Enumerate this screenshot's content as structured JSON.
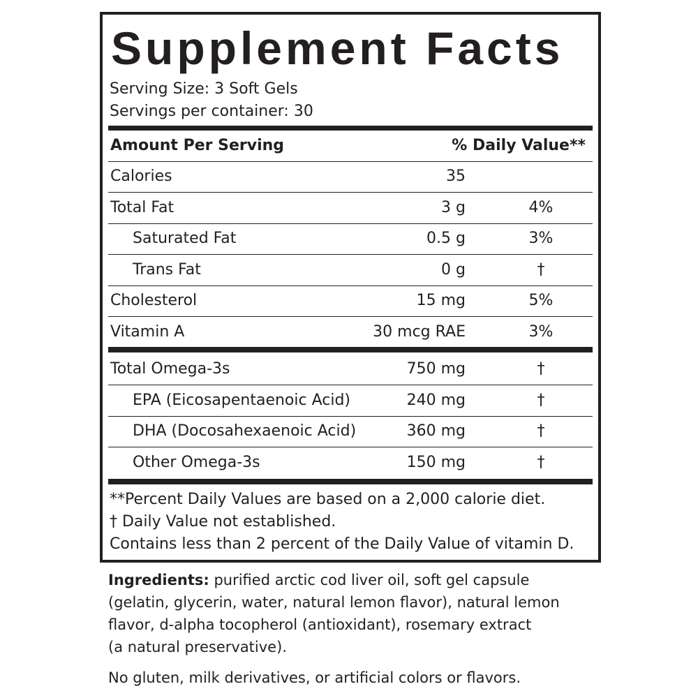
{
  "label": {
    "title": "Supplement Facts",
    "serving_size": "Serving Size: 3 Soft Gels",
    "servings_per_container": "Servings per container: 30",
    "header": {
      "amount": "Amount Per Serving",
      "dv": "% Daily Value**"
    },
    "nutrients": [
      {
        "name": "Calories",
        "amount": "35"
      },
      {
        "name": "Total Fat",
        "amount": "3 g",
        "dv": "4%"
      },
      {
        "name": "Saturated Fat",
        "amount": "0.5 g",
        "dv": "3%",
        "indent": true
      },
      {
        "name": "Trans Fat",
        "amount": "0 g",
        "dv": "†",
        "indent": true
      },
      {
        "name": "Cholesterol",
        "amount": "15 mg",
        "dv": "5%"
      },
      {
        "name": "Vitamin A",
        "amount": "30 mcg RAE",
        "dv": "3%"
      }
    ],
    "omega": [
      {
        "name": "Total Omega-3s",
        "amount": "750 mg",
        "dv": "†"
      },
      {
        "name": "EPA (Eicosapentaenoic Acid)",
        "amount": "240 mg",
        "dv": "†",
        "indent": true
      },
      {
        "name": "DHA (Docosahexaenoic Acid)",
        "amount": "360 mg",
        "dv": "†",
        "indent": true
      },
      {
        "name": "Other Omega-3s",
        "amount": "150 mg",
        "dv": "†",
        "indent": true
      }
    ],
    "footnotes": [
      "**Percent Daily Values are based on a 2,000 calorie diet.",
      "†  Daily Value not established.",
      "Contains less than 2 percent of the Daily Value of vitamin D."
    ]
  },
  "ingredients": {
    "label": "Ingredients:",
    "lines": [
      "purified arctic cod liver oil, soft gel capsule",
      "(gelatin, glycerin, water, natural lemon flavor), natural lemon",
      "flavor, d-alpha tocopherol (antioxidant), rosemary extract",
      "(a natural preservative)."
    ],
    "note": "No gluten, milk derivatives, or artificial colors or flavors."
  }
}
